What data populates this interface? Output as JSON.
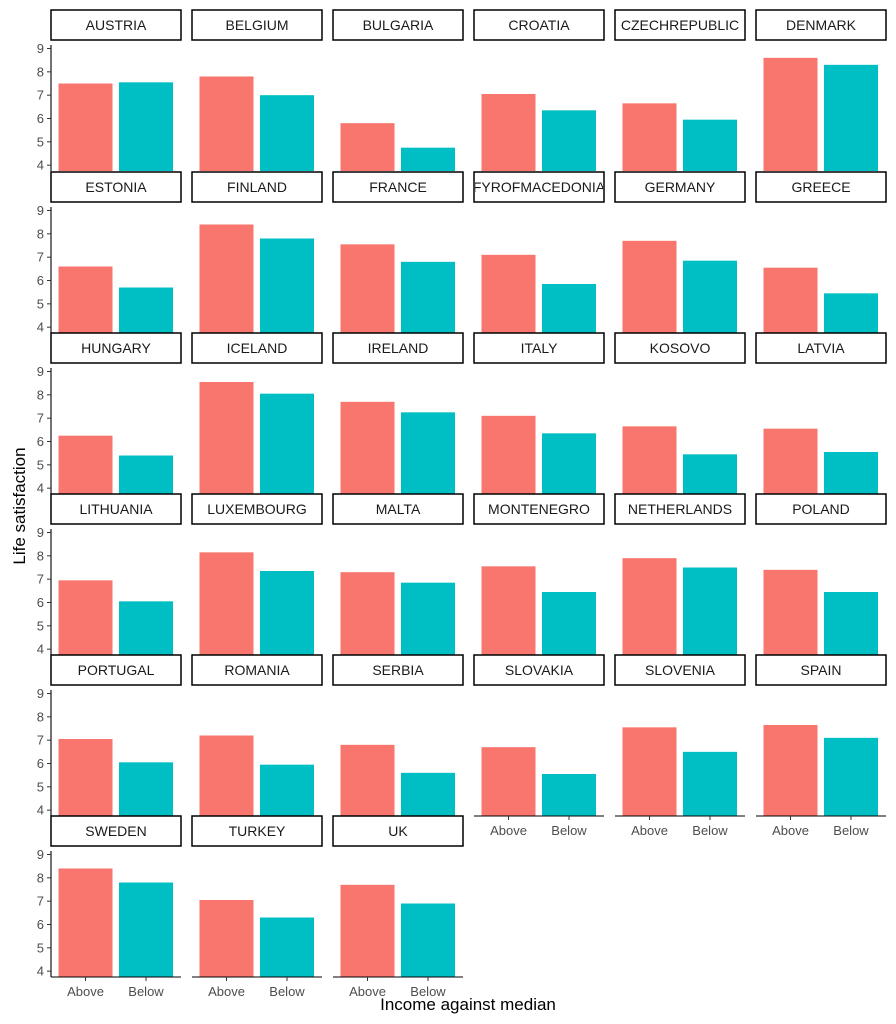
{
  "chart_data": {
    "type": "bar",
    "facet_by": "country",
    "xlabel": "Income against median",
    "ylabel": "Life satisfaction",
    "categories": [
      "Above",
      "Below"
    ],
    "ylim": [
      3.75,
      9.15
    ],
    "yticks": [
      4,
      5,
      6,
      7,
      8,
      9
    ],
    "ytick_labels": [
      "4",
      "5",
      "6",
      "7",
      "8",
      "9"
    ],
    "xtick_labels": [
      "Above",
      "Below"
    ],
    "grid": false,
    "legend": "none",
    "colors": {
      "Above": "#F8766D",
      "Below": "#00BFC4"
    },
    "facets": [
      {
        "label": "AUSTRIA",
        "values": [
          7.5,
          7.55
        ]
      },
      {
        "label": "BELGIUM",
        "values": [
          7.8,
          7.0
        ]
      },
      {
        "label": "BULGARIA",
        "values": [
          5.8,
          4.75
        ]
      },
      {
        "label": "CROATIA",
        "values": [
          7.05,
          6.35
        ]
      },
      {
        "label": "CZECHREPUBLIC",
        "values": [
          6.65,
          5.95
        ]
      },
      {
        "label": "DENMARK",
        "values": [
          8.6,
          8.3
        ]
      },
      {
        "label": "ESTONIA",
        "values": [
          6.6,
          5.7
        ]
      },
      {
        "label": "FINLAND",
        "values": [
          8.4,
          7.8
        ]
      },
      {
        "label": "FRANCE",
        "values": [
          7.55,
          6.8
        ]
      },
      {
        "label": "FYROFMACEDONIA",
        "values": [
          7.1,
          5.85
        ]
      },
      {
        "label": "GERMANY",
        "values": [
          7.7,
          6.85
        ]
      },
      {
        "label": "GREECE",
        "values": [
          6.55,
          5.45
        ]
      },
      {
        "label": "HUNGARY",
        "values": [
          6.25,
          5.4
        ]
      },
      {
        "label": "ICELAND",
        "values": [
          8.55,
          8.05
        ]
      },
      {
        "label": "IRELAND",
        "values": [
          7.7,
          7.25
        ]
      },
      {
        "label": "ITALY",
        "values": [
          7.1,
          6.35
        ]
      },
      {
        "label": "KOSOVO",
        "values": [
          6.65,
          5.45
        ]
      },
      {
        "label": "LATVIA",
        "values": [
          6.55,
          5.55
        ]
      },
      {
        "label": "LITHUANIA",
        "values": [
          6.95,
          6.05
        ]
      },
      {
        "label": "LUXEMBOURG",
        "values": [
          8.15,
          7.35
        ]
      },
      {
        "label": "MALTA",
        "values": [
          7.3,
          6.85
        ]
      },
      {
        "label": "MONTENEGRO",
        "values": [
          7.55,
          6.45
        ]
      },
      {
        "label": "NETHERLANDS",
        "values": [
          7.9,
          7.5
        ]
      },
      {
        "label": "POLAND",
        "values": [
          7.4,
          6.45
        ]
      },
      {
        "label": "PORTUGAL",
        "values": [
          7.05,
          6.05
        ]
      },
      {
        "label": "ROMANIA",
        "values": [
          7.2,
          5.95
        ]
      },
      {
        "label": "SERBIA",
        "values": [
          6.8,
          5.6
        ]
      },
      {
        "label": "SLOVAKIA",
        "values": [
          6.7,
          5.55
        ]
      },
      {
        "label": "SLOVENIA",
        "values": [
          7.55,
          6.5
        ]
      },
      {
        "label": "SPAIN",
        "values": [
          7.65,
          7.1
        ]
      },
      {
        "label": "SWEDEN",
        "values": [
          8.4,
          7.8
        ]
      },
      {
        "label": "TURKEY",
        "values": [
          7.05,
          6.3
        ]
      },
      {
        "label": "UK",
        "values": [
          7.7,
          6.9
        ]
      }
    ]
  }
}
